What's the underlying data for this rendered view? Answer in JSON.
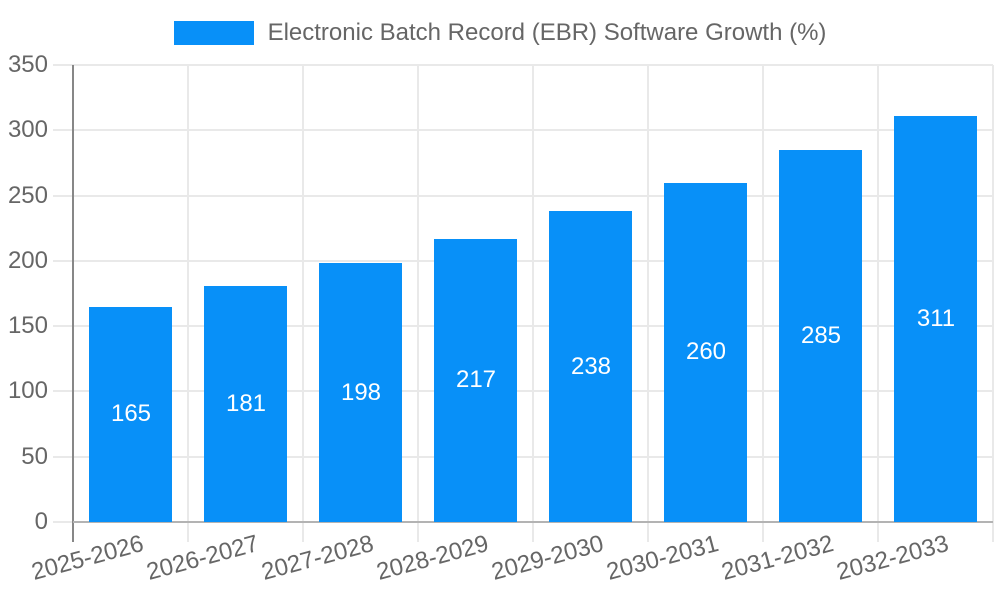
{
  "chart_data": {
    "type": "bar",
    "title": "Electronic Batch Record (EBR) Software Growth (%)",
    "legend": {
      "position": "top",
      "label": "Electronic Batch Record (EBR) Software Growth (%)"
    },
    "categories": [
      "2025-2026",
      "2026-2027",
      "2027-2028",
      "2028-2029",
      "2029-2030",
      "2030-2031",
      "2031-2032",
      "2032-2033"
    ],
    "values": [
      165,
      181,
      198,
      217,
      238,
      260,
      285,
      311
    ],
    "value_labels_shown_on_bars": true,
    "xlabel": "",
    "ylabel": "",
    "ylim": [
      0,
      350
    ],
    "yticks": [
      0,
      50,
      100,
      150,
      200,
      250,
      300,
      350
    ],
    "grid": true,
    "x_label_rotation_deg": -15,
    "colors": {
      "bar": "#0890f8",
      "value_label": "#ffffff",
      "axis_text": "#666666",
      "gridline": "#e9e9e9",
      "y_axis_line": "#878787",
      "x_axis_line": "#b3b3b3",
      "first_x_tick": "#9a9a9a",
      "background": "#ffffff"
    }
  }
}
